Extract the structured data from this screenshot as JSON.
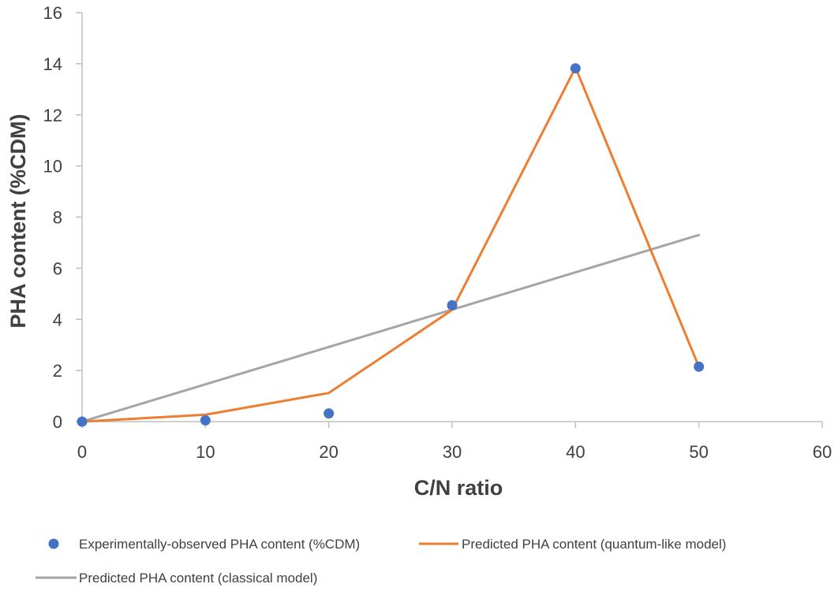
{
  "chart_data": {
    "type": "scatter",
    "title": "",
    "xlabel": "C/N ratio",
    "ylabel": "PHA content (%CDM)",
    "xlim": [
      0,
      60
    ],
    "ylim": [
      0,
      16
    ],
    "xticks": [
      0,
      10,
      20,
      30,
      40,
      50,
      60
    ],
    "yticks": [
      0,
      2,
      4,
      6,
      8,
      10,
      12,
      14,
      16
    ],
    "grid": false,
    "legend_position": "bottom",
    "series": [
      {
        "name": "Experimentally-observed PHA content (%CDM)",
        "kind": "markers",
        "color": "#4472C4",
        "x": [
          0,
          10,
          20,
          30,
          40,
          50
        ],
        "y": [
          0,
          0.05,
          0.32,
          4.55,
          13.82,
          2.15
        ]
      },
      {
        "name": "Predicted PHA content (quantum-like model)",
        "kind": "line",
        "color": "#ED7D31",
        "x": [
          0,
          10,
          20,
          30,
          40,
          50
        ],
        "y": [
          0,
          0.27,
          1.12,
          4.37,
          13.85,
          2.15
        ]
      },
      {
        "name": "Predicted PHA content (classical model)",
        "kind": "line",
        "color": "#A5A5A5",
        "x": [
          0,
          50
        ],
        "y": [
          0,
          7.3
        ]
      }
    ]
  }
}
